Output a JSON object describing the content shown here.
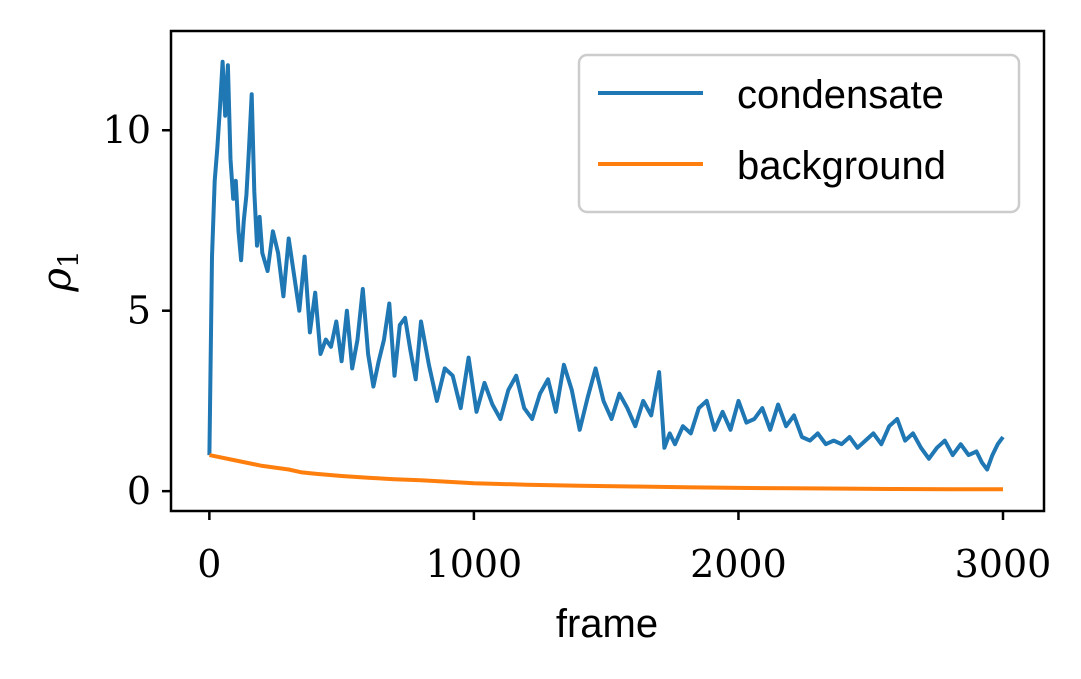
{
  "chart_data": {
    "type": "line",
    "xlabel": "frame",
    "ylabel": "ρ",
    "ylabel_subscript": "1",
    "xlim": [
      -145,
      3155
    ],
    "ylim": [
      -0.55,
      12.75
    ],
    "xticks": [
      0,
      1000,
      2000,
      3000
    ],
    "yticks": [
      0,
      5,
      10
    ],
    "xtick_labels": [
      "0",
      "1000",
      "2000",
      "3000"
    ],
    "ytick_labels": [
      "0",
      "5",
      "10"
    ],
    "legend_position": "top-right",
    "series": [
      {
        "name": "condensate",
        "color": "#1f77b4",
        "x": [
          0,
          10,
          20,
          30,
          40,
          50,
          60,
          70,
          80,
          90,
          100,
          110,
          120,
          130,
          140,
          150,
          160,
          170,
          180,
          190,
          200,
          220,
          240,
          260,
          280,
          300,
          320,
          340,
          360,
          380,
          400,
          420,
          440,
          460,
          480,
          500,
          520,
          540,
          560,
          580,
          600,
          620,
          640,
          660,
          680,
          700,
          720,
          740,
          760,
          780,
          800,
          830,
          860,
          890,
          920,
          950,
          980,
          1010,
          1040,
          1070,
          1100,
          1130,
          1160,
          1190,
          1220,
          1250,
          1280,
          1310,
          1340,
          1370,
          1400,
          1430,
          1460,
          1490,
          1520,
          1550,
          1580,
          1610,
          1640,
          1670,
          1700,
          1720,
          1740,
          1760,
          1790,
          1820,
          1850,
          1880,
          1910,
          1940,
          1970,
          2000,
          2030,
          2060,
          2090,
          2120,
          2150,
          2180,
          2210,
          2240,
          2270,
          2300,
          2330,
          2360,
          2390,
          2420,
          2450,
          2480,
          2510,
          2540,
          2570,
          2600,
          2630,
          2660,
          2690,
          2720,
          2750,
          2780,
          2810,
          2840,
          2870,
          2900,
          2920,
          2940,
          2960,
          2980,
          3000
        ],
        "y": [
          1.0,
          6.5,
          8.6,
          9.5,
          10.6,
          11.9,
          10.4,
          11.8,
          9.2,
          8.1,
          8.6,
          7.2,
          6.4,
          7.5,
          8.2,
          9.5,
          11.0,
          8.3,
          6.8,
          7.6,
          6.6,
          6.1,
          7.2,
          6.6,
          5.4,
          7.0,
          6.0,
          5.0,
          6.5,
          4.4,
          5.5,
          3.8,
          4.2,
          4.0,
          4.7,
          3.6,
          5.0,
          3.4,
          4.2,
          5.6,
          3.8,
          2.9,
          3.6,
          4.2,
          5.2,
          3.2,
          4.6,
          4.8,
          3.9,
          3.1,
          4.7,
          3.5,
          2.5,
          3.4,
          3.2,
          2.3,
          3.7,
          2.2,
          3.0,
          2.4,
          2.0,
          2.8,
          3.2,
          2.3,
          2.0,
          2.7,
          3.1,
          2.2,
          3.5,
          2.8,
          1.7,
          2.6,
          3.4,
          2.5,
          2.0,
          2.7,
          2.3,
          1.8,
          2.5,
          2.1,
          3.3,
          1.2,
          1.6,
          1.3,
          1.8,
          1.6,
          2.3,
          2.5,
          1.7,
          2.2,
          1.7,
          2.5,
          1.9,
          2.0,
          2.3,
          1.7,
          2.4,
          1.8,
          2.1,
          1.5,
          1.4,
          1.6,
          1.3,
          1.4,
          1.3,
          1.5,
          1.2,
          1.4,
          1.6,
          1.3,
          1.8,
          2.0,
          1.4,
          1.6,
          1.2,
          0.9,
          1.2,
          1.4,
          1.0,
          1.3,
          1.0,
          1.1,
          0.8,
          0.6,
          1.0,
          1.3,
          1.5
        ]
      },
      {
        "name": "background",
        "color": "#ff7f0e",
        "x": [
          0,
          100,
          200,
          300,
          350,
          400,
          500,
          600,
          700,
          800,
          900,
          1000,
          1200,
          1400,
          1600,
          1800,
          2000,
          2200,
          2400,
          2600,
          2800,
          3000
        ],
        "y": [
          1.0,
          0.85,
          0.7,
          0.6,
          0.52,
          0.48,
          0.42,
          0.37,
          0.33,
          0.3,
          0.26,
          0.22,
          0.18,
          0.15,
          0.13,
          0.11,
          0.09,
          0.08,
          0.07,
          0.06,
          0.055,
          0.05
        ]
      }
    ]
  }
}
